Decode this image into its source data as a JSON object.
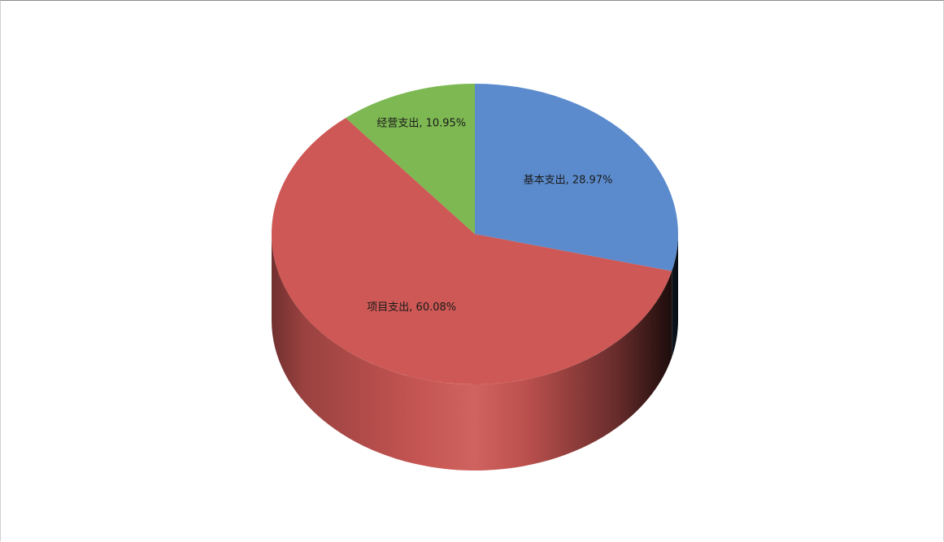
{
  "chart_data": {
    "type": "pie",
    "style": "3d",
    "title": "",
    "slices": [
      {
        "label": "基本支出, 28.97%",
        "name": "基本支出",
        "value": 28.97,
        "color": "#5B8BCD"
      },
      {
        "label": "项目支出, 60.08%",
        "name": "项目支出",
        "value": 60.08,
        "color": "#CD5855"
      },
      {
        "label": "经营支出, 10.95%",
        "name": "经营支出",
        "value": 10.95,
        "color": "#7DB852"
      }
    ],
    "legend": "none",
    "data_labels": "category-name-and-percent"
  }
}
